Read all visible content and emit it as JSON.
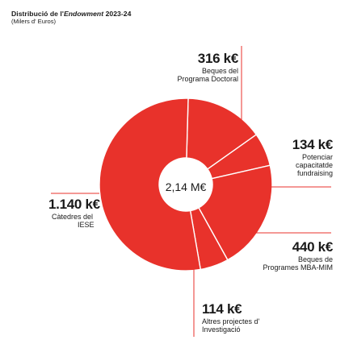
{
  "title": {
    "prefix": "Distribució de l'",
    "emphasis": "Endowment",
    "suffix": " 2023-24"
  },
  "subtitle": "(Milers d' Euros)",
  "center_label": "2,14 M€",
  "colors": {
    "slice": "#e8322b",
    "divider": "#ffffff",
    "leader": "#e8322b"
  },
  "chart_data": {
    "type": "pie",
    "donut": true,
    "unit": "k€",
    "total_label": "2,14 M€",
    "slices": [
      {
        "label_lines": [
          "Beques del",
          "Programa Doctoral"
        ],
        "value": 316,
        "display": "316 k€"
      },
      {
        "label_lines": [
          "Potenciar",
          "capacitatde",
          "fundraising"
        ],
        "value": 134,
        "display": "134 k€"
      },
      {
        "label_lines": [
          "Beques de",
          "Programes MBA-MIM"
        ],
        "value": 440,
        "display": "440 k€"
      },
      {
        "label_lines": [
          "Altres projectes d'",
          "Investigació"
        ],
        "value": 114,
        "display": "114 k€"
      },
      {
        "label_lines": [
          "Càtedres del",
          "IESE"
        ],
        "value": 1140,
        "display": "1.140 k€"
      }
    ]
  }
}
